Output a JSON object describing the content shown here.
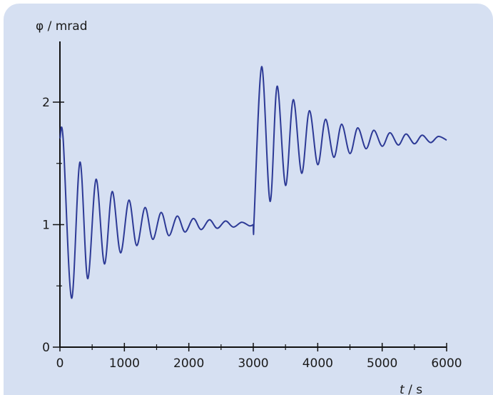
{
  "chart_data": {
    "type": "line",
    "title": "",
    "ylabel": "φ / mrad",
    "xlabel_var": "t",
    "xlabel_unit": " / s",
    "xlim": [
      0,
      6000
    ],
    "ylim": [
      0,
      2.3
    ],
    "x_ticks": [
      0,
      1000,
      2000,
      3000,
      4000,
      5000,
      6000
    ],
    "x_tick_labels": [
      "0",
      "1000",
      "2000",
      "3000",
      "4000",
      "5000",
      "6000"
    ],
    "y_ticks": [
      0,
      1,
      2
    ],
    "y_tick_labels": [
      "0",
      "1",
      "2"
    ],
    "y_minor_ticks": [
      0.5,
      1.5
    ],
    "line_color": "#2d3a96",
    "background_color": "#d6e0f2",
    "grid": false,
    "series": [
      {
        "x": [
          0,
          50,
          180,
          310,
          430,
          560,
          690,
          810,
          940,
          1070,
          1190,
          1320,
          1440,
          1570,
          1690,
          1820,
          1940,
          2070,
          2190,
          2320,
          2440,
          2570,
          2690,
          2820,
          2940,
          3000,
          3000,
          3010,
          3130,
          3260,
          3370,
          3500,
          3620,
          3750,
          3870,
          4000,
          4120,
          4250,
          4370,
          4500,
          4620,
          4750,
          4870,
          5000,
          5120,
          5250,
          5370,
          5500,
          5620,
          5750,
          5870,
          6000
        ],
        "y": [
          1.7,
          1.7,
          0.4,
          1.51,
          0.56,
          1.37,
          0.68,
          1.27,
          0.77,
          1.2,
          0.83,
          1.14,
          0.88,
          1.1,
          0.91,
          1.07,
          0.94,
          1.05,
          0.96,
          1.04,
          0.97,
          1.03,
          0.98,
          1.02,
          0.99,
          1.0,
          1.0,
          1.02,
          2.29,
          1.19,
          2.13,
          1.32,
          2.02,
          1.42,
          1.93,
          1.49,
          1.86,
          1.55,
          1.82,
          1.58,
          1.79,
          1.62,
          1.77,
          1.64,
          1.75,
          1.65,
          1.74,
          1.66,
          1.73,
          1.67,
          1.72,
          1.69
        ]
      }
    ]
  }
}
